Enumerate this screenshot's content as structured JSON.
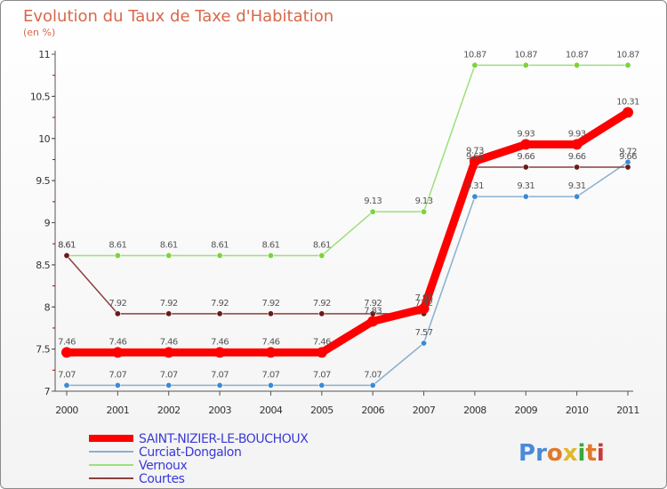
{
  "chart_data": {
    "type": "line",
    "title": "Evolution du Taux de Taxe d'Habitation",
    "subtitle": "(en %)",
    "xlabel": "",
    "ylabel": "",
    "x": [
      "2000",
      "2001",
      "2002",
      "2003",
      "2004",
      "2005",
      "2006",
      "2007",
      "2008",
      "2009",
      "2010",
      "2011"
    ],
    "ylim": [
      7,
      11
    ],
    "yticks": [
      7,
      7.5,
      8,
      8.5,
      9,
      9.5,
      10,
      10.5,
      11
    ],
    "ytick_labels": [
      "7",
      "7.5",
      "8",
      "8.5",
      "9",
      "9.5",
      "10",
      "10.5",
      "11"
    ],
    "grid": false,
    "legend_position": "bottom-left",
    "series": [
      {
        "name": "SAINT-NIZIER-LE-BOUCHOUX",
        "color": "#ff0000",
        "values": [
          7.46,
          7.46,
          7.46,
          7.46,
          7.46,
          7.46,
          7.83,
          7.98,
          9.73,
          9.93,
          9.93,
          10.31
        ],
        "labels": [
          "7.46",
          "7.46",
          "7.46",
          "7.46",
          "7.46",
          "7.46",
          "7.83",
          "7.98",
          "9.73",
          "9.93",
          "9.93",
          "10.31"
        ]
      },
      {
        "name": "Curciat-Dongalon",
        "color": "#8ab0d0",
        "marker_color": "#3a8ad8",
        "values": [
          7.07,
          7.07,
          7.07,
          7.07,
          7.07,
          7.07,
          7.07,
          7.57,
          9.31,
          9.31,
          9.31,
          9.72
        ],
        "labels": [
          "7.07",
          "7.07",
          "7.07",
          "7.07",
          "7.07",
          "7.07",
          "7.07",
          "7.57",
          "9.31",
          "9.31",
          "9.31",
          "9.72"
        ]
      },
      {
        "name": "Vernoux",
        "color": "#9ce07c",
        "marker_color": "#7ad43a",
        "values": [
          8.61,
          8.61,
          8.61,
          8.61,
          8.61,
          8.61,
          9.13,
          9.13,
          10.87,
          10.87,
          10.87,
          10.87
        ],
        "labels": [
          "8.61",
          "8.61",
          "8.61",
          "8.61",
          "8.61",
          "8.61",
          "9.13",
          "9.13",
          "10.87",
          "10.87",
          "10.87",
          "10.87"
        ]
      },
      {
        "name": "Courtes",
        "color": "#8a4040",
        "marker_color": "#6a1a1a",
        "values": [
          8.61,
          7.92,
          7.92,
          7.92,
          7.92,
          7.92,
          7.92,
          7.92,
          9.66,
          9.66,
          9.66,
          9.66
        ],
        "labels": [
          "8.61",
          "7.92",
          "7.92",
          "7.92",
          "7.92",
          "7.92",
          "7.92",
          "7.92",
          "9.66",
          "9.66",
          "9.66",
          "9.66"
        ]
      }
    ]
  },
  "logo": {
    "text": "Proxiti",
    "letters": [
      "P",
      "r",
      "o",
      "x",
      "i",
      "t",
      "i"
    ],
    "colors": [
      "#4a8ad8",
      "#4a8ad8",
      "#e07a2a",
      "#e0b82a",
      "#3aa83a",
      "#e07a2a",
      "#c83a3a"
    ]
  }
}
